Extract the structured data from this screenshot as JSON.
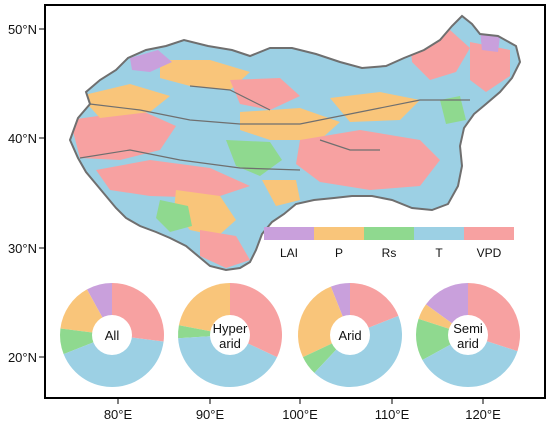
{
  "map": {
    "lat_ticks": [
      "50°N",
      "40°N",
      "30°N",
      "20°N"
    ],
    "lon_ticks": [
      "80°E",
      "90°E",
      "100°E",
      "110°E",
      "120°E"
    ]
  },
  "legend": {
    "items": [
      {
        "label": "LAI",
        "color": "#c9a0dc"
      },
      {
        "label": "P",
        "color": "#f9c57a"
      },
      {
        "label": "Rs",
        "color": "#8fd98f"
      },
      {
        "label": "T",
        "color": "#9cd0e4"
      },
      {
        "label": "VPD",
        "color": "#f7a1a1"
      }
    ]
  },
  "colors": {
    "LAI": "#c9a0dc",
    "P": "#f9c57a",
    "Rs": "#8fd98f",
    "T": "#9cd0e4",
    "VPD": "#f7a1a1",
    "boundary": "#6f6f6f",
    "frame": "#000000"
  },
  "chart_data": {
    "type": "pie",
    "categories": [
      "LAI",
      "P",
      "Rs",
      "T",
      "VPD"
    ],
    "series": [
      {
        "name": "All",
        "values": [
          0.08,
          0.15,
          0.08,
          0.42,
          0.27
        ]
      },
      {
        "name": "Hyper arid",
        "values": [
          0.0,
          0.22,
          0.04,
          0.42,
          0.32
        ]
      },
      {
        "name": "Arid",
        "values": [
          0.06,
          0.26,
          0.06,
          0.43,
          0.19
        ]
      },
      {
        "name": "Semi arid",
        "values": [
          0.15,
          0.05,
          0.13,
          0.37,
          0.3
        ]
      }
    ],
    "pie_labels": [
      {
        "line1": "All",
        "line2": ""
      },
      {
        "line1": "Hyper",
        "line2": "arid"
      },
      {
        "line1": "Arid",
        "line2": ""
      },
      {
        "line1": "Semi",
        "line2": "arid"
      }
    ]
  }
}
